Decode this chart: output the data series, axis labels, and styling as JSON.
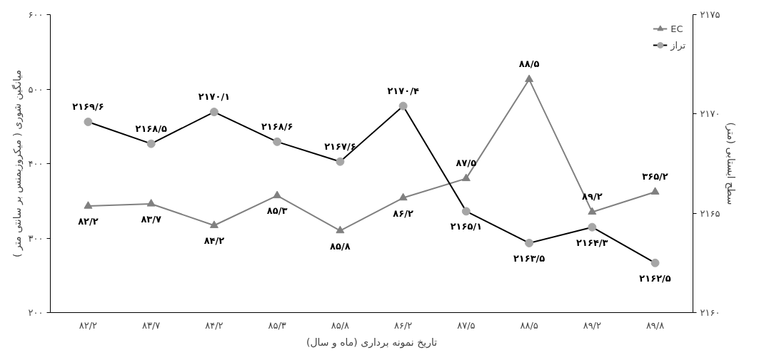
{
  "chart_data": {
    "type": "line",
    "xlabel": "تاریخ نمونه برداری (ماه و سال)",
    "ylabel": "میانگین شوری ( میکروزیمنس بر سانتی متر )",
    "y2label": "سطح ایستابی (متر)",
    "categories": [
      "۸۲/۲",
      "۸۳/۷",
      "۸۴/۲",
      "۸۵/۳",
      "۸۵/۸",
      "۸۶/۲",
      "۸۷/۵",
      "۸۸/۵",
      "۸۹/۲",
      "۸۹/۸"
    ],
    "series": [
      {
        "name": "EC",
        "color": "#808080",
        "marker": "triangle",
        "values": [
          343,
          346,
          317,
          357,
          310,
          354,
          380,
          513,
          335,
          362
        ],
        "value_labels": [
          "۸۲/۲",
          "۸۳/۷",
          "۸۴/۲",
          "۸۵/۳",
          "۸۵/۸",
          "۸۶/۲",
          "۸۷/۵",
          "۸۸/۵",
          "۸۹/۲",
          "۳۶۵/۲"
        ]
      },
      {
        "name": "تراز",
        "color": "#000000",
        "marker": "circle",
        "axis": "y2",
        "values": [
          2169.6,
          2168.5,
          2170.1,
          2168.6,
          2167.6,
          2170.4,
          2165.1,
          2163.5,
          2164.3,
          2162.5
        ],
        "value_labels": [
          "۲۱۶۹/۶",
          "۲۱۶۸/۵",
          "۲۱۷۰/۱",
          "۲۱۶۸/۶",
          "۲۱۶۷/۶",
          "۲۱۷۰/۴",
          "۲۱۶۵/۱",
          "۲۱۶۳/۵",
          "۲۱۶۴/۳",
          "۲۱۶۲/۵"
        ]
      }
    ],
    "ylim": [
      200,
      600
    ],
    "yticks": [
      {
        "value": 200,
        "label": "۲۰۰"
      },
      {
        "value": 300,
        "label": "۳۰۰"
      },
      {
        "value": 400,
        "label": "۴۰۰"
      },
      {
        "value": 500,
        "label": "۵۰۰"
      },
      {
        "value": 600,
        "label": "۶۰۰"
      }
    ],
    "y2lim": [
      2160,
      2175
    ],
    "y2ticks": [
      {
        "value": 2160,
        "label": "۲۱۶۰"
      },
      {
        "value": 2165,
        "label": "۲۱۶۵"
      },
      {
        "value": 2170,
        "label": "۲۱۷۰"
      },
      {
        "value": 2175,
        "label": "۲۱۷۵"
      }
    ],
    "grid": false,
    "legend": "top right"
  }
}
